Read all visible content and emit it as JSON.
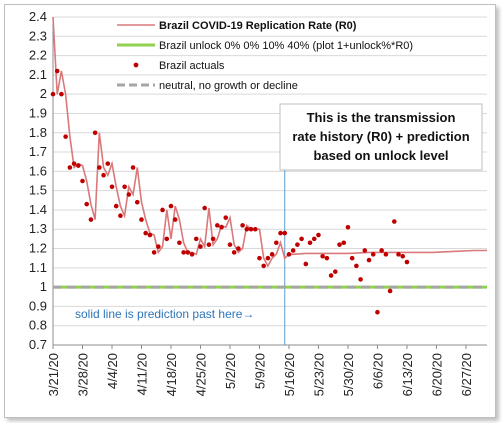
{
  "chart_data": {
    "type": "line",
    "ylim": [
      0.7,
      2.4
    ],
    "yticks": [
      0.7,
      0.8,
      0.9,
      1,
      1.1,
      1.2,
      1.3,
      1.4,
      1.5,
      1.6,
      1.7,
      1.8,
      1.9,
      2,
      2.1,
      2.2,
      2.3,
      2.4
    ],
    "xlim": [
      "2020-03-21",
      "2020-07-02"
    ],
    "xticks": [
      "3/21/20",
      "3/28/20",
      "4/4/20",
      "4/11/20",
      "4/18/20",
      "4/25/20",
      "5/2/20",
      "5/9/20",
      "5/16/20",
      "5/23/20",
      "5/30/20",
      "6/6/20",
      "6/13/20",
      "6/20/20",
      "6/27/20"
    ],
    "grid": "horizontal",
    "legend_position": "top-right",
    "colors": {
      "replication": "#d9797b",
      "unlock": "#92d050",
      "actuals": "#c00000",
      "neutral": "#a6a6a6",
      "prediction_marker": "#5b9bd5",
      "note": "#2e75b6"
    },
    "series": [
      {
        "name": "Brazil COVID-19 Replication Rate (R0)",
        "style": "line",
        "x": [
          "2020-03-21",
          "2020-03-22",
          "2020-03-23",
          "2020-03-24",
          "2020-03-25",
          "2020-03-26",
          "2020-03-27",
          "2020-03-28",
          "2020-03-29",
          "2020-03-30",
          "2020-03-31",
          "2020-04-01",
          "2020-04-02",
          "2020-04-03",
          "2020-04-04",
          "2020-04-05",
          "2020-04-06",
          "2020-04-07",
          "2020-04-08",
          "2020-04-09",
          "2020-04-10",
          "2020-04-11",
          "2020-04-12",
          "2020-04-13",
          "2020-04-14",
          "2020-04-15",
          "2020-04-16",
          "2020-04-17",
          "2020-04-18",
          "2020-04-19",
          "2020-04-20",
          "2020-04-21",
          "2020-04-22",
          "2020-04-23",
          "2020-04-24",
          "2020-04-25",
          "2020-04-26",
          "2020-04-27",
          "2020-04-28",
          "2020-04-29",
          "2020-04-30",
          "2020-05-01",
          "2020-05-02",
          "2020-05-03",
          "2020-05-04",
          "2020-05-05",
          "2020-05-06",
          "2020-05-07",
          "2020-05-08",
          "2020-05-09",
          "2020-05-10",
          "2020-05-11",
          "2020-05-12",
          "2020-05-13",
          "2020-05-14",
          "2020-05-15",
          "2020-05-16",
          "2020-05-17",
          "2020-05-20",
          "2020-05-25",
          "2020-05-30",
          "2020-06-04",
          "2020-06-09",
          "2020-06-14",
          "2020-06-19",
          "2020-06-24",
          "2020-06-29",
          "2020-07-02"
        ],
        "values": [
          2.4,
          2.0,
          2.12,
          2.0,
          1.78,
          1.62,
          1.64,
          1.63,
          1.55,
          1.43,
          1.35,
          1.8,
          1.62,
          1.58,
          1.64,
          1.52,
          1.42,
          1.37,
          1.52,
          1.48,
          1.62,
          1.44,
          1.35,
          1.28,
          1.27,
          1.18,
          1.21,
          1.4,
          1.25,
          1.42,
          1.35,
          1.23,
          1.18,
          1.18,
          1.17,
          1.25,
          1.21,
          1.41,
          1.22,
          1.25,
          1.32,
          1.31,
          1.36,
          1.22,
          1.18,
          1.2,
          1.32,
          1.3,
          1.3,
          1.3,
          1.15,
          1.11,
          1.15,
          1.17,
          1.23,
          1.15,
          1.17,
          1.17,
          1.175,
          1.175,
          1.175,
          1.18,
          1.18,
          1.18,
          1.18,
          1.185,
          1.19,
          1.19
        ]
      },
      {
        "name": "Brazil unlock 0% 0% 10% 40% (plot 1+unlock%*R0)",
        "style": "line",
        "x": [
          "2020-03-21",
          "2020-07-02"
        ],
        "values": [
          1.0,
          1.0
        ]
      },
      {
        "name": "Brazil actuals",
        "style": "points",
        "x": [
          "2020-03-21",
          "2020-03-22",
          "2020-03-23",
          "2020-03-24",
          "2020-03-25",
          "2020-03-26",
          "2020-03-27",
          "2020-03-28",
          "2020-03-29",
          "2020-03-30",
          "2020-03-31",
          "2020-04-01",
          "2020-04-02",
          "2020-04-03",
          "2020-04-04",
          "2020-04-05",
          "2020-04-06",
          "2020-04-07",
          "2020-04-08",
          "2020-04-09",
          "2020-04-10",
          "2020-04-11",
          "2020-04-12",
          "2020-04-13",
          "2020-04-14",
          "2020-04-15",
          "2020-04-16",
          "2020-04-17",
          "2020-04-18",
          "2020-04-19",
          "2020-04-20",
          "2020-04-21",
          "2020-04-22",
          "2020-04-23",
          "2020-04-24",
          "2020-04-25",
          "2020-04-26",
          "2020-04-27",
          "2020-04-28",
          "2020-04-29",
          "2020-04-30",
          "2020-05-01",
          "2020-05-02",
          "2020-05-03",
          "2020-05-04",
          "2020-05-05",
          "2020-05-06",
          "2020-05-07",
          "2020-05-08",
          "2020-05-09",
          "2020-05-10",
          "2020-05-11",
          "2020-05-12",
          "2020-05-13",
          "2020-05-14",
          "2020-05-15",
          "2020-05-16",
          "2020-05-17",
          "2020-05-18",
          "2020-05-19",
          "2020-05-20",
          "2020-05-21",
          "2020-05-22",
          "2020-05-23",
          "2020-05-24",
          "2020-05-25",
          "2020-05-26",
          "2020-05-27",
          "2020-05-28",
          "2020-05-29",
          "2020-05-30",
          "2020-05-31",
          "2020-06-01",
          "2020-06-02",
          "2020-06-03",
          "2020-06-04",
          "2020-06-05",
          "2020-06-06",
          "2020-06-07",
          "2020-06-08",
          "2020-06-09",
          "2020-06-10",
          "2020-06-11",
          "2020-06-12",
          "2020-06-13"
        ],
        "values": [
          2.0,
          2.12,
          2.0,
          1.78,
          1.62,
          1.64,
          1.63,
          1.55,
          1.43,
          1.35,
          1.8,
          1.62,
          1.58,
          1.64,
          1.52,
          1.42,
          1.37,
          1.52,
          1.48,
          1.62,
          1.44,
          1.35,
          1.28,
          1.27,
          1.18,
          1.21,
          1.4,
          1.25,
          1.42,
          1.35,
          1.23,
          1.18,
          1.18,
          1.17,
          1.25,
          1.21,
          1.41,
          1.22,
          1.25,
          1.32,
          1.31,
          1.36,
          1.22,
          1.18,
          1.2,
          1.32,
          1.3,
          1.3,
          1.3,
          1.15,
          1.11,
          1.15,
          1.17,
          1.23,
          1.28,
          1.28,
          1.17,
          1.19,
          1.22,
          1.25,
          1.12,
          1.23,
          1.25,
          1.27,
          1.16,
          1.15,
          1.06,
          1.08,
          1.22,
          1.23,
          1.31,
          1.15,
          1.11,
          1.04,
          1.19,
          1.14,
          1.17,
          0.87,
          1.19,
          1.17,
          0.98,
          1.34,
          1.17,
          1.16,
          1.13
        ]
      },
      {
        "name": "neutral, no growth or decline",
        "style": "dashed",
        "x": [
          "2020-03-21",
          "2020-07-02"
        ],
        "values": [
          1.0,
          1.0
        ]
      }
    ],
    "prediction_start": "2020-05-15",
    "callout": [
      "This is the transmission",
      "rate history (R0) + prediction",
      "based on unlock level"
    ],
    "annotation": "solid line is prediction past here→"
  }
}
